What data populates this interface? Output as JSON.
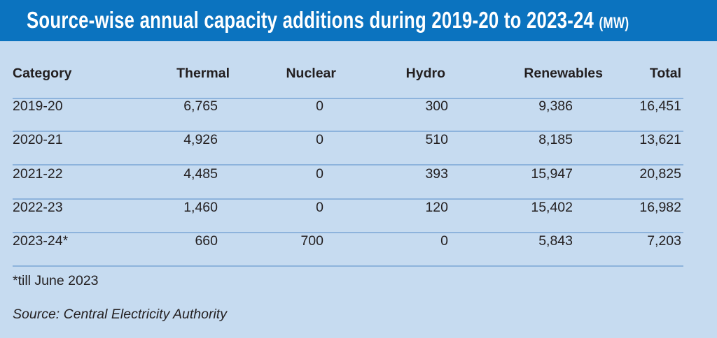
{
  "title": "Source-wise annual capacity additions during 2019-20 to 2023-24",
  "unit": "(MW)",
  "colors": {
    "header": "#0b73bf",
    "background": "#c6dbf0",
    "rule": "#8db3dc"
  },
  "chart_data": {
    "type": "table",
    "title": "Source-wise annual capacity additions during 2019-20 to 2023-24 (MW)",
    "columns": [
      "Category",
      "Thermal",
      "Nuclear",
      "Hydro",
      "Renewables",
      "Total"
    ],
    "rows": [
      [
        "2019-20",
        "6,765",
        "0",
        "300",
        "9,386",
        "16,451"
      ],
      [
        "2020-21",
        "4,926",
        "0",
        "510",
        "8,185",
        "13,621"
      ],
      [
        "2021-22",
        "4,485",
        "0",
        "393",
        "15,947",
        "20,825"
      ],
      [
        "2022-23",
        "1,460",
        "0",
        "120",
        "15,402",
        "16,982"
      ],
      [
        "2023-24*",
        "660",
        "700",
        "0",
        "5,843",
        "7,203"
      ]
    ]
  },
  "footnote": "*till June 2023",
  "source": "Source: Central Electricity Authority"
}
